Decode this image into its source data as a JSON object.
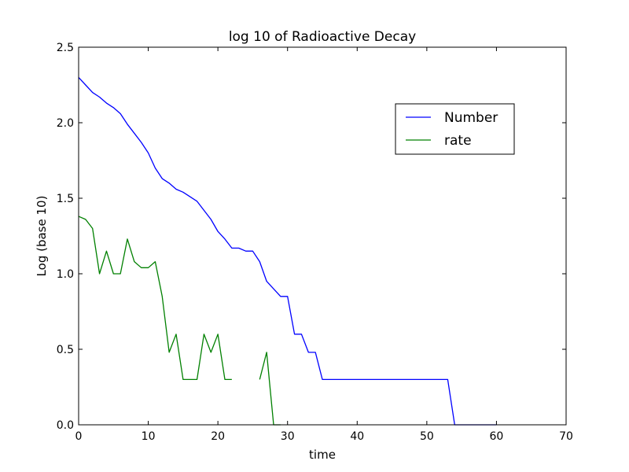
{
  "chart_data": {
    "type": "line",
    "title": "log 10 of Radioactive Decay",
    "xlabel": "time",
    "ylabel": "Log (base 10)",
    "xlim": [
      0,
      70
    ],
    "ylim": [
      0,
      2.5
    ],
    "xticks": [
      0,
      10,
      20,
      30,
      40,
      50,
      60,
      70
    ],
    "yticks": [
      0.0,
      0.5,
      1.0,
      1.5,
      2.0,
      2.5
    ],
    "xtick_labels": [
      "0",
      "10",
      "20",
      "30",
      "40",
      "50",
      "60",
      "70"
    ],
    "ytick_labels": [
      "0.0",
      "0.5",
      "1.0",
      "1.5",
      "2.0",
      "2.5"
    ],
    "grid": false,
    "legend_position": "top-right",
    "series": [
      {
        "name": "Number",
        "color": "#0000ff",
        "x": [
          0,
          1,
          2,
          3,
          4,
          5,
          6,
          7,
          8,
          9,
          10,
          11,
          12,
          13,
          14,
          15,
          16,
          17,
          18,
          19,
          20,
          21,
          22,
          23,
          24,
          25,
          26,
          27,
          28,
          29,
          30,
          31,
          32,
          33,
          34,
          35,
          36,
          37,
          38,
          39,
          40,
          41,
          42,
          43,
          44,
          45,
          46,
          47,
          48,
          49,
          50,
          51,
          52,
          53,
          54,
          55,
          56,
          57,
          58,
          59,
          60
        ],
        "y": [
          2.3,
          2.25,
          2.2,
          2.17,
          2.13,
          2.1,
          2.06,
          1.99,
          1.93,
          1.87,
          1.8,
          1.7,
          1.63,
          1.6,
          1.56,
          1.54,
          1.51,
          1.48,
          1.42,
          1.36,
          1.28,
          1.23,
          1.17,
          1.17,
          1.15,
          1.15,
          1.08,
          0.95,
          0.9,
          0.85,
          0.85,
          0.6,
          0.6,
          0.48,
          0.48,
          0.3,
          0.3,
          0.3,
          0.3,
          0.3,
          0.3,
          0.3,
          0.3,
          0.3,
          0.3,
          0.3,
          0.3,
          0.3,
          0.3,
          0.3,
          0.3,
          0.3,
          0.3,
          0.3,
          0.0,
          0.0,
          0.0,
          0.0,
          0.0,
          0.0,
          0.0
        ]
      },
      {
        "name": "rate",
        "color": "#008000",
        "x": [
          0,
          1,
          2,
          3,
          4,
          5,
          6,
          7,
          8,
          9,
          10,
          11,
          12,
          13,
          14,
          15,
          16,
          17,
          18,
          19,
          20,
          21,
          22,
          23,
          24,
          25,
          26,
          27,
          28,
          29
        ],
        "y": [
          1.38,
          1.36,
          1.3,
          1.0,
          1.15,
          1.0,
          1.0,
          1.23,
          1.08,
          1.04,
          1.04,
          1.08,
          0.85,
          0.48,
          0.6,
          0.3,
          0.3,
          0.3,
          0.6,
          0.48,
          0.6,
          0.3,
          0.3,
          null,
          null,
          null,
          0.3,
          0.48,
          0.0,
          0.0
        ]
      }
    ]
  }
}
